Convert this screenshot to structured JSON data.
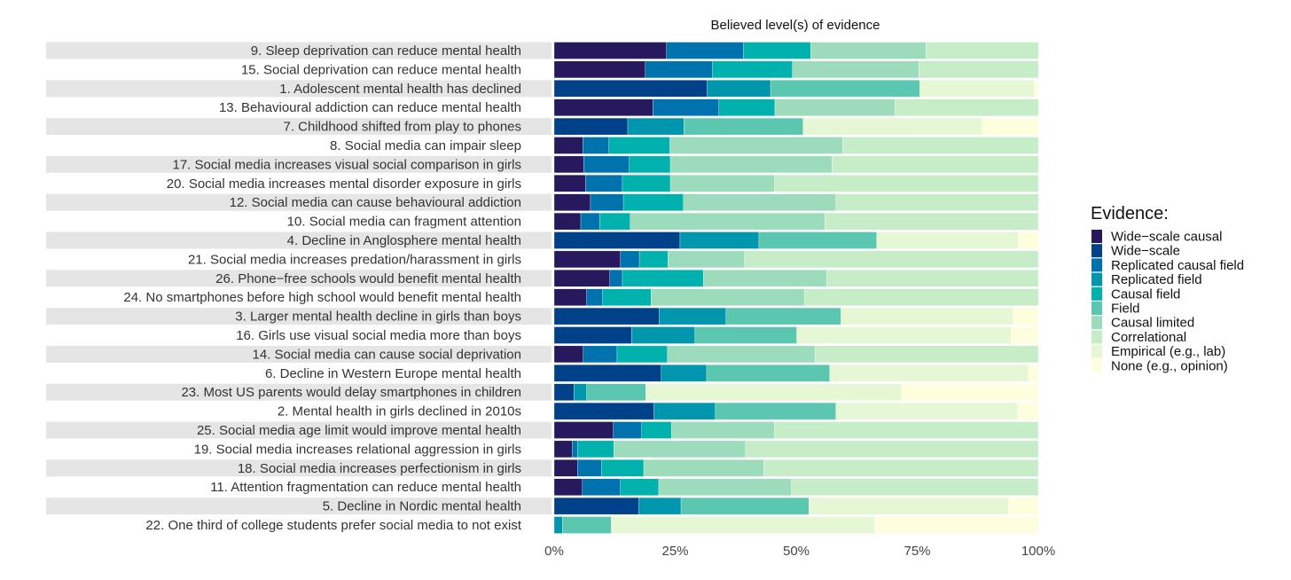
{
  "chart_data": {
    "type": "bar",
    "orientation": "horizontal-stacked-percent",
    "title": "Believed level(s) of evidence",
    "xlabel": "",
    "ylabel": "",
    "xlim": [
      0,
      100
    ],
    "x_ticks": [
      "0%",
      "25%",
      "50%",
      "75%",
      "100%"
    ],
    "x_tick_values": [
      0,
      25,
      50,
      75,
      100
    ],
    "legend": {
      "title": "Evidence:",
      "placement": "right",
      "entries": [
        "Wide−scale causal",
        "Wide−scale",
        "Replicated causal field",
        "Replicated field",
        "Causal field",
        "Field",
        "Causal limited",
        "Correlational",
        "Empirical (e.g., lab)",
        "None (e.g., opinion)"
      ],
      "colors": [
        "#27195e",
        "#00428a",
        "#0073ae",
        "#0096ae",
        "#00b1ad",
        "#5cc7b1",
        "#9cdcbc",
        "#c6ecc8",
        "#e5f7d5",
        "#fdfedd"
      ]
    },
    "categories": [
      "9. Sleep deprivation can reduce mental health",
      "15. Social deprivation can reduce mental health",
      "1. Adolescent mental health has declined",
      "13. Behavioural addiction can reduce mental health",
      "7. Childhood shifted from play to phones",
      "8. Social media can impair sleep",
      "17. Social media increases visual social comparison in girls",
      "20. Social media increases mental disorder exposure in girls",
      "12. Social media can cause behavioural addiction",
      "10. Social media can fragment attention",
      "4. Decline in Anglosphere mental health",
      "21. Social media increases predation/harassment in girls",
      "26. Phone−free schools would benefit mental health",
      "24. No smartphones before high school would benefit mental health",
      "3. Larger mental health decline in girls than boys",
      "16. Girls use visual social media more than boys",
      "14. Social media can cause social deprivation",
      "6. Decline in Western Europe mental health",
      "23. Most US parents would delay smartphones in children",
      "2. Mental health in girls declined in 2010s",
      "25. Social media age limit would improve mental health",
      "19. Social media increases relational aggression in girls",
      "18. Social media increases perfectionism in girls",
      "11. Attention fragmentation can reduce mental health",
      "5. Decline in Nordic mental health",
      "22. One third of college students prefer social media to not exist"
    ],
    "values": [
      [
        23.2,
        0,
        15.9,
        0,
        13.9,
        0,
        23.8,
        23.2,
        0,
        0
      ],
      [
        18.8,
        0,
        13.9,
        0,
        16.5,
        0,
        26.1,
        24.7,
        0,
        0
      ],
      [
        0,
        31.6,
        0,
        13.1,
        0,
        30.8,
        0,
        0,
        23.6,
        0.9
      ],
      [
        20.4,
        0,
        13.6,
        0,
        11.6,
        0,
        24.8,
        29.6,
        0,
        0
      ],
      [
        0,
        15.2,
        0,
        11.6,
        0,
        24.6,
        0,
        0,
        37.0,
        11.6
      ],
      [
        5.9,
        0,
        5.4,
        0,
        12.6,
        0,
        35.7,
        40.4,
        0,
        0
      ],
      [
        6.1,
        0,
        9.4,
        0,
        8.5,
        0,
        33.4,
        42.6,
        0,
        0
      ],
      [
        6.5,
        0,
        7.6,
        0,
        9.9,
        0,
        21.5,
        54.5,
        0,
        0
      ],
      [
        7.5,
        0,
        6.8,
        0,
        12.4,
        0,
        31.5,
        41.8,
        0,
        0
      ],
      [
        5.5,
        0,
        3.9,
        0,
        6.3,
        0,
        40.2,
        44.1,
        0,
        0
      ],
      [
        0,
        26.0,
        0,
        16.3,
        0,
        24.3,
        0,
        0,
        29.3,
        4.1
      ],
      [
        13.7,
        0,
        3.9,
        0,
        5.9,
        0,
        15.8,
        60.7,
        0,
        0
      ],
      [
        11.5,
        0,
        2.6,
        0,
        16.7,
        0,
        25.5,
        43.7,
        0,
        0
      ],
      [
        6.7,
        0,
        3.3,
        0,
        10.0,
        0,
        31.7,
        48.3,
        0,
        0
      ],
      [
        0,
        21.7,
        0,
        13.8,
        0,
        23.7,
        0,
        0,
        35.6,
        5.2
      ],
      [
        0,
        16.0,
        0,
        13.1,
        0,
        21.0,
        0,
        0,
        44.3,
        5.6
      ],
      [
        6.0,
        0,
        7.0,
        0,
        10.4,
        0,
        30.5,
        46.1,
        0,
        0
      ],
      [
        0,
        22.1,
        0,
        9.4,
        0,
        25.4,
        0,
        0,
        41.1,
        2.0
      ],
      [
        0,
        4.1,
        0,
        2.6,
        0,
        12.2,
        0,
        0,
        52.8,
        28.3
      ],
      [
        0,
        20.6,
        0,
        12.7,
        0,
        24.9,
        0,
        0,
        37.5,
        4.3
      ],
      [
        12.2,
        0,
        5.9,
        0,
        6.1,
        0,
        21.3,
        54.5,
        0,
        0
      ],
      [
        3.7,
        0,
        1.1,
        0,
        7.5,
        0,
        27.2,
        60.5,
        0,
        0
      ],
      [
        4.8,
        0,
        5.0,
        0,
        8.7,
        0,
        24.8,
        56.7,
        0,
        0
      ],
      [
        5.8,
        0,
        7.9,
        0,
        7.9,
        0,
        27.4,
        51.0,
        0,
        0
      ],
      [
        0,
        17.5,
        0,
        8.7,
        0,
        26.4,
        0,
        0,
        41.2,
        6.2
      ],
      [
        0,
        0,
        0,
        1.7,
        0,
        10.1,
        0,
        0,
        54.4,
        33.8
      ]
    ],
    "grid": false
  }
}
